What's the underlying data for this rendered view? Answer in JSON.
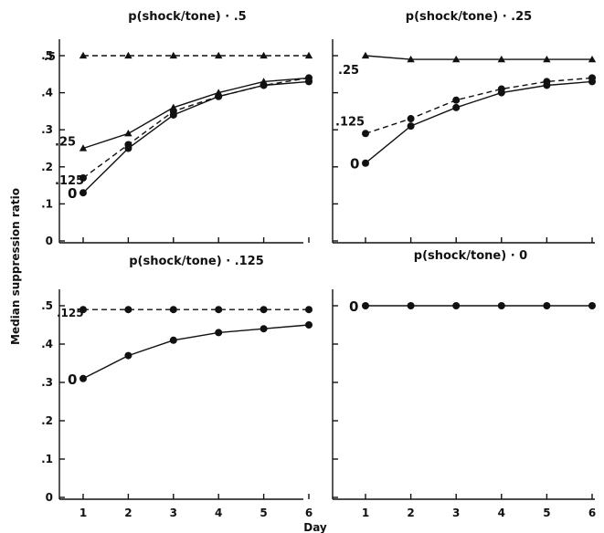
{
  "chart_data": {
    "type": "line",
    "xlabel": "Day",
    "ylabel": "Median suppression ratio",
    "x": [
      1,
      2,
      3,
      4,
      5,
      6
    ],
    "xlim": [
      0.5,
      6
    ],
    "ylim": [
      0,
      0.5
    ],
    "x_ticks": [
      "1",
      "2",
      "3",
      "4",
      "5",
      "6"
    ],
    "y_ticks": [
      ".5",
      ".4",
      ".3",
      ".2",
      ".1",
      "0"
    ],
    "panels": [
      {
        "title": "p(shock/tone) · .5",
        "series": [
          {
            "name": ".5",
            "style": "dashed",
            "marker": "triangle",
            "values": [
              0.5,
              0.5,
              0.5,
              0.5,
              0.5,
              0.5
            ]
          },
          {
            "name": ".25",
            "style": "solid",
            "marker": "triangle",
            "values": [
              0.25,
              0.29,
              0.36,
              0.4,
              0.43,
              0.44
            ]
          },
          {
            "name": ".125",
            "style": "dashed",
            "marker": "circle",
            "values": [
              0.17,
              0.26,
              0.35,
              0.39,
              0.42,
              0.44
            ]
          },
          {
            "name": "0",
            "style": "solid",
            "marker": "circle",
            "values": [
              0.13,
              0.25,
              0.34,
              0.39,
              0.42,
              0.43
            ]
          }
        ]
      },
      {
        "title": "p(shock/tone) · .25",
        "series": [
          {
            "name": ".25",
            "style": "solid",
            "marker": "triangle",
            "values": [
              0.5,
              0.49,
              0.49,
              0.49,
              0.49,
              0.49
            ]
          },
          {
            "name": ".125",
            "style": "dashed",
            "marker": "circle",
            "values": [
              0.29,
              0.33,
              0.38,
              0.41,
              0.43,
              0.44
            ]
          },
          {
            "name": "0",
            "style": "solid",
            "marker": "circle",
            "values": [
              0.21,
              0.31,
              0.36,
              0.4,
              0.42,
              0.43
            ]
          }
        ]
      },
      {
        "title": "p(shock/tone) · .125",
        "series": [
          {
            "name": ".125",
            "style": "dashed",
            "marker": "circle",
            "values": [
              0.49,
              0.49,
              0.49,
              0.49,
              0.49,
              0.49
            ]
          },
          {
            "name": "0",
            "style": "solid",
            "marker": "circle",
            "values": [
              0.31,
              0.37,
              0.41,
              0.43,
              0.44,
              0.45
            ]
          }
        ]
      },
      {
        "title": "p(shock/tone) · 0",
        "series": [
          {
            "name": "0",
            "style": "solid",
            "marker": "circle",
            "values": [
              0.5,
              0.5,
              0.5,
              0.5,
              0.5,
              0.5
            ]
          }
        ]
      }
    ]
  }
}
